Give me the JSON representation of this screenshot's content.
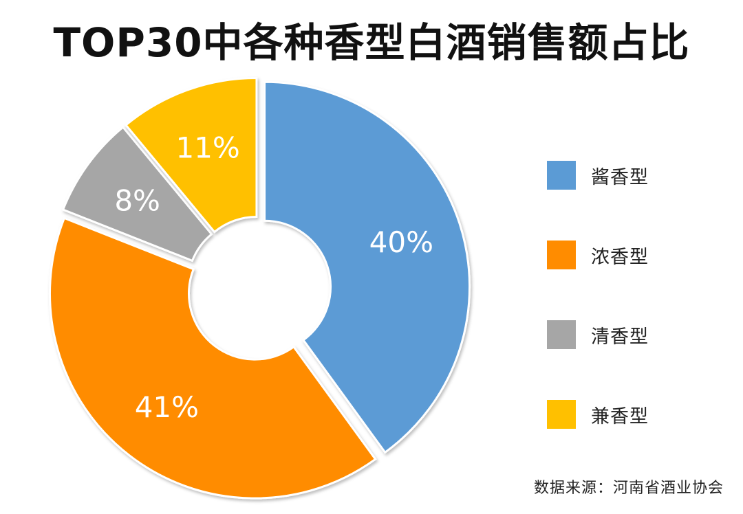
{
  "chart_data": {
    "type": "pie",
    "title": "TOP30中各种香型白酒销售额占比",
    "categories": [
      "酱香型",
      "浓香型",
      "清香型",
      "兼香型"
    ],
    "values": [
      40,
      41,
      8,
      11
    ],
    "value_labels": [
      "40%",
      "41%",
      "8%",
      "11%"
    ],
    "colors": [
      "#5B9BD5",
      "#FF8C00",
      "#A6A6A6",
      "#FFC000"
    ],
    "donut": true,
    "exploded": true,
    "legend_position": "right",
    "source": "数据来源：河南省酒业协会"
  }
}
